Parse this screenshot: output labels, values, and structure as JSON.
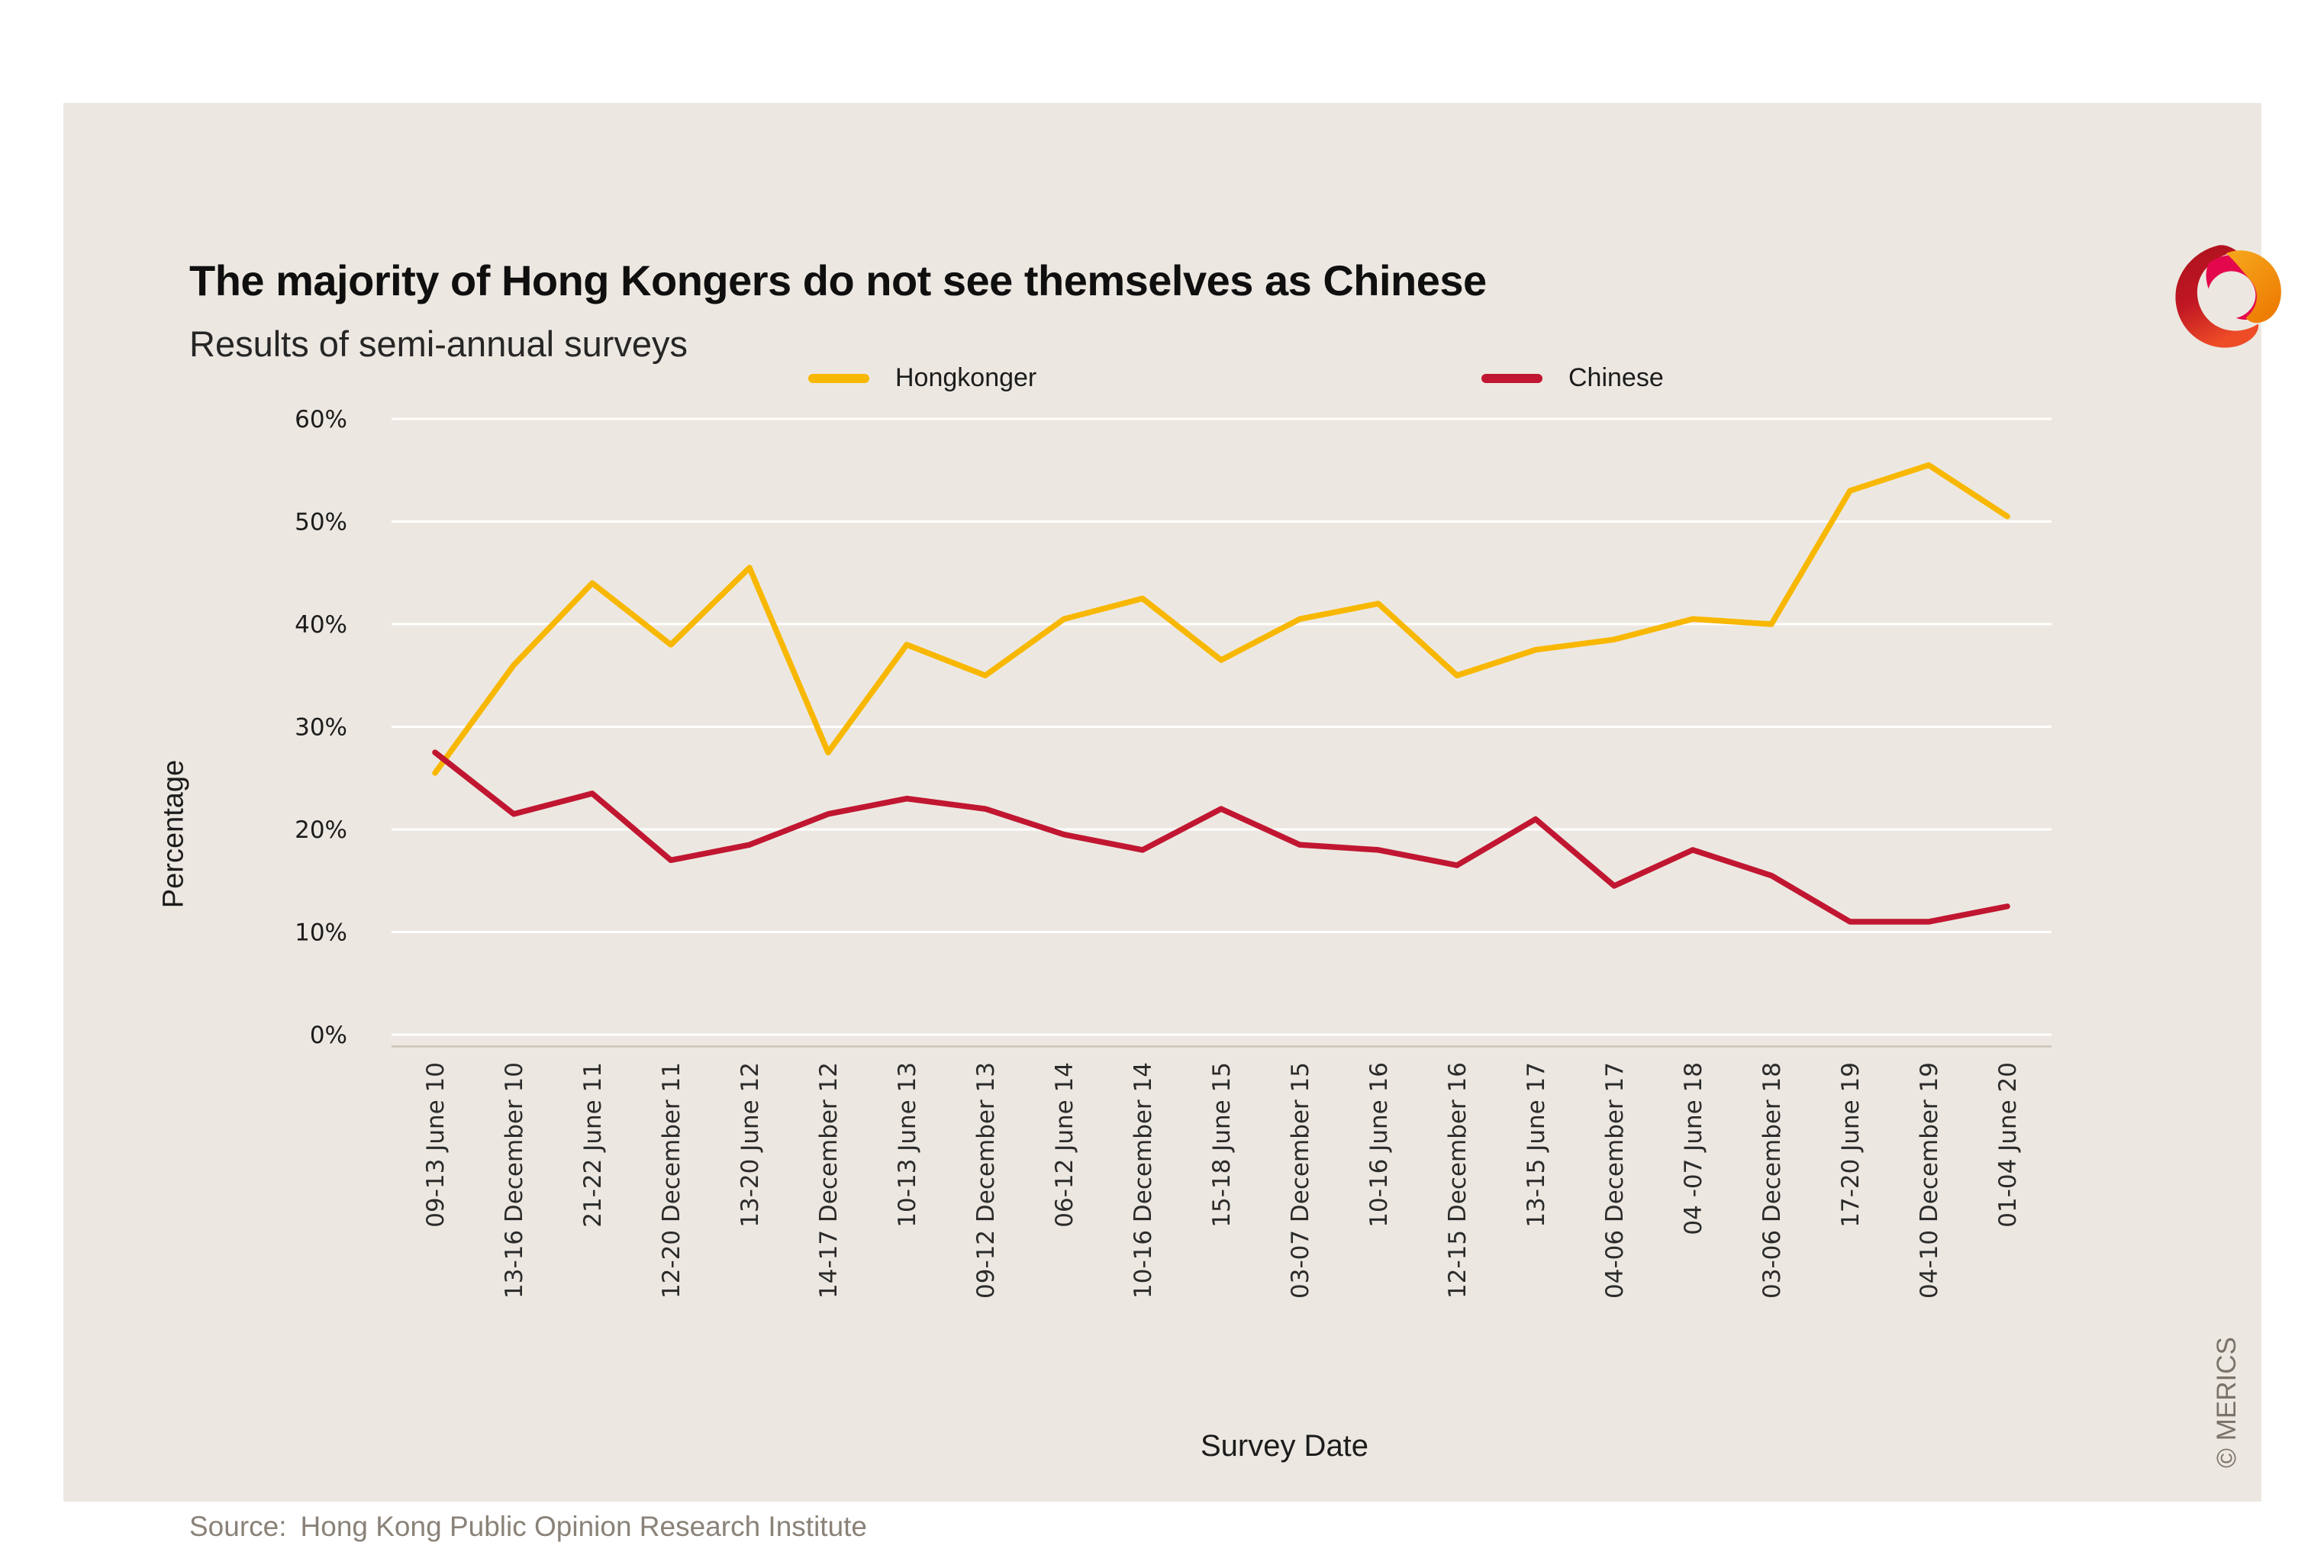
{
  "page": {
    "title": "The majority of Hong Kongers do not see themselves as Chinese",
    "subtitle": "Results of semi-annual surveys",
    "source_label": "Source:",
    "source_text": "Hong Kong Public Opinion Research Institute",
    "copyright": "© MERICS"
  },
  "colors": {
    "hongkonger": "#F8B700",
    "chinese": "#C11631",
    "gridline": "#FFFFFF",
    "axis_line": "#C9C3B8",
    "card_background": "#ECE8E1"
  },
  "legend": [
    {
      "label": "Hongkonger",
      "color": "#F8B700"
    },
    {
      "label": "Chinese",
      "color": "#C11631"
    }
  ],
  "chart_data": {
    "type": "line",
    "title": "The majority of Hong Kongers do not see themselves as Chinese",
    "subtitle": "Results of semi-annual surveys",
    "xlabel": "Survey Date",
    "ylabel": "Percentage",
    "ylim": [
      0,
      60
    ],
    "yticks": [
      "0%",
      "10%",
      "20%",
      "30%",
      "40%",
      "50%",
      "60%"
    ],
    "grid": true,
    "legend_position": "top",
    "categories": [
      "09-13 June 10",
      "13-16 December 10",
      "21-22 June 11",
      "12-20 December 11",
      "13-20 June 12",
      "14-17 December 12",
      "10-13 June 13",
      "09-12 December 13",
      "06-12 June 14",
      "10-16 December 14",
      "15-18 June 15",
      "03-07 December 15",
      "10-16 June 16",
      "12-15 December 16",
      "13-15 June 17",
      "04-06 December 17",
      "04 -07 June 18",
      "03-06 December 18",
      "17-20 June 19",
      "04-10 December 19",
      "01-04 June 20"
    ],
    "series": [
      {
        "name": "Hongkonger",
        "color": "#F8B700",
        "values": [
          25.5,
          36,
          44,
          38,
          45.5,
          27.5,
          38,
          35,
          40.5,
          42.5,
          36.5,
          40.5,
          42,
          35,
          37.5,
          38.5,
          40.5,
          40,
          53,
          55.5,
          50.5
        ]
      },
      {
        "name": "Chinese",
        "color": "#C11631",
        "values": [
          27.5,
          21.5,
          23.5,
          17,
          18.5,
          21.5,
          23,
          22,
          19.5,
          18,
          22,
          18.5,
          18,
          16.5,
          21,
          14.5,
          18,
          15.5,
          11,
          11,
          12.5
        ]
      }
    ]
  }
}
